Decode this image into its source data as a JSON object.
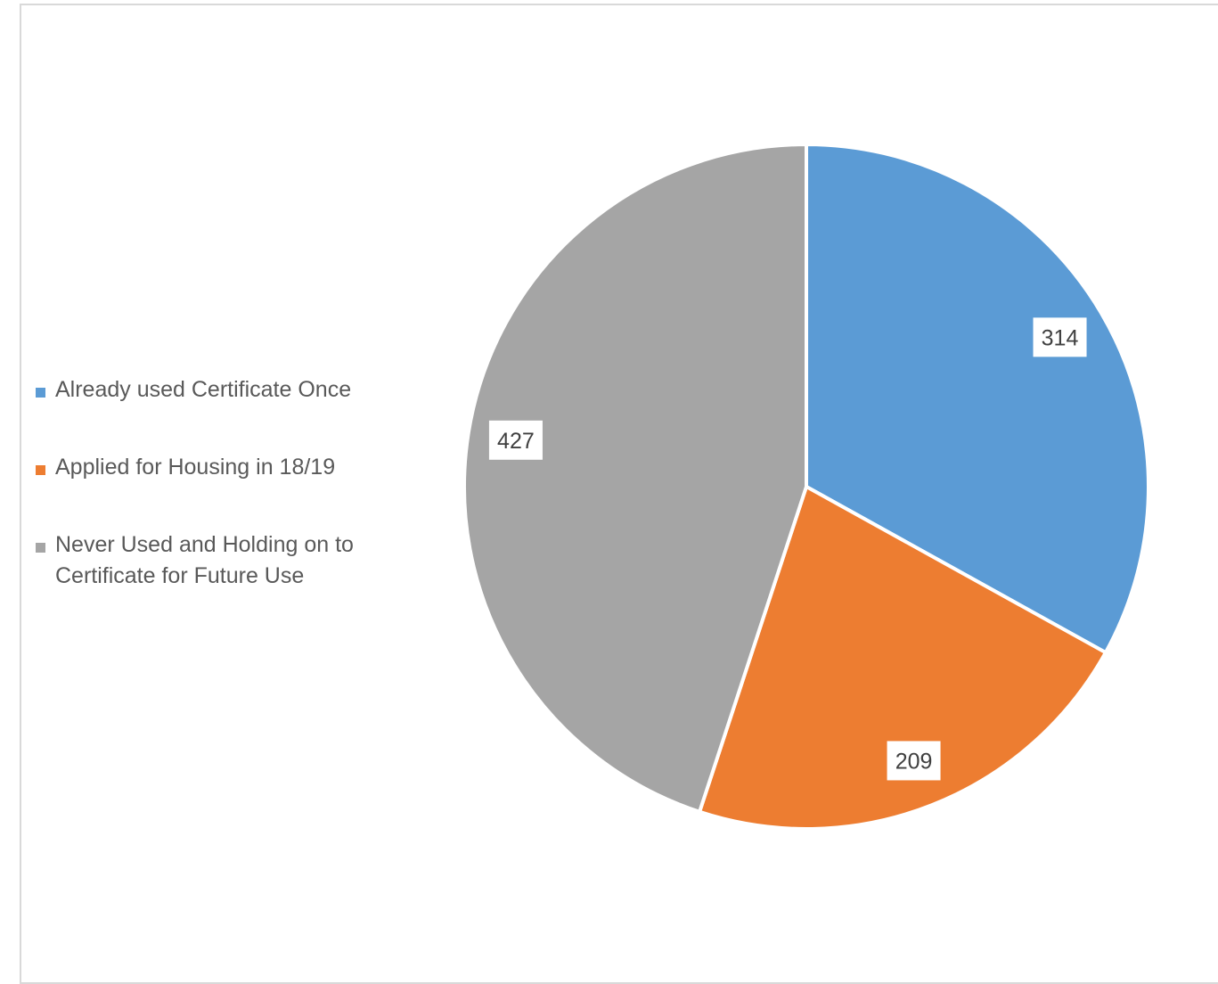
{
  "chart_data": {
    "type": "pie",
    "categories": [
      "Already used Certificate Once",
      "Applied for Housing in 18/19",
      "Never Used and Holding on to Certificate for Future Use"
    ],
    "values": [
      314,
      209,
      427
    ],
    "colors": [
      "#5b9bd5",
      "#ed7d31",
      "#a5a5a5"
    ],
    "data_labels": [
      "314",
      "209",
      "427"
    ],
    "start_angle": "12 o'clock, clockwise",
    "legend_position": "left",
    "title": ""
  }
}
